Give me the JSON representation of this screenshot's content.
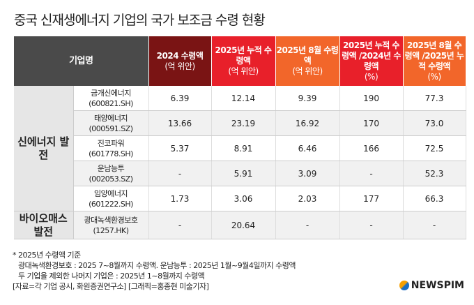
{
  "title": "중국 신재생에너지 기업의 국가 보조금 수령 현황",
  "header": {
    "company": "기업명",
    "cols": [
      {
        "l1": "2024 수령액",
        "l2": "(억 위안)",
        "color": "#7a1414"
      },
      {
        "l1": "2025년 누적 수령액",
        "l2": "(억 위안)",
        "color": "#e8202a"
      },
      {
        "l1": "2025년 8월 수령액",
        "l2": "(억 위안)",
        "color": "#f2662a"
      },
      {
        "l1": "2025년 누적 수령액 /2024년 수령액",
        "l2": "(%)",
        "color": "#e8202a"
      },
      {
        "l1": "2025년 8월 수령액 /2025년 누적 수령액",
        "l2": "(%)",
        "color": "#f2662a"
      }
    ]
  },
  "groups": [
    {
      "label": "신에너지 발전",
      "rows": [
        {
          "name": "금개신에너지",
          "code": "(600821.SH)",
          "v": [
            "6.39",
            "12.14",
            "9.39",
            "190",
            "77.3"
          ]
        },
        {
          "name": "태양에너지",
          "code": "(000591.SZ)",
          "v": [
            "13.66",
            "23.19",
            "16.92",
            "170",
            "73.0"
          ]
        },
        {
          "name": "진코파워",
          "code": "(601778.SH)",
          "v": [
            "5.37",
            "8.91",
            "6.46",
            "166",
            "72.5"
          ]
        },
        {
          "name": "운남능투",
          "code": "(002053.SZ)",
          "v": [
            "-",
            "5.91",
            "3.09",
            "-",
            "52.3"
          ]
        },
        {
          "name": "임양에너지",
          "code": "(601222.SH)",
          "v": [
            "1.73",
            "3.06",
            "2.03",
            "177",
            "66.3"
          ]
        }
      ]
    },
    {
      "label": "바이오매스 발전",
      "rows": [
        {
          "name": "광대녹색환경보호",
          "code": "(1257.HK)",
          "v": [
            "-",
            "20.64",
            "-",
            "-",
            "-"
          ]
        }
      ]
    }
  ],
  "notes": [
    "* 2025년 수령액 기준",
    "광대녹색환경보호 : 2025 7~8월까지 수령액. 운남능투 : 2025년 1월~9월4일까지 수령액",
    "두 기업을 제외한 나머지 기업은 : 2025년 1~8월까지 수령액",
    "[자료=각 기업 공시, 화원증권연구소] [그래픽=홍종현 미술기자]"
  ],
  "logo": "NEWSPIM"
}
